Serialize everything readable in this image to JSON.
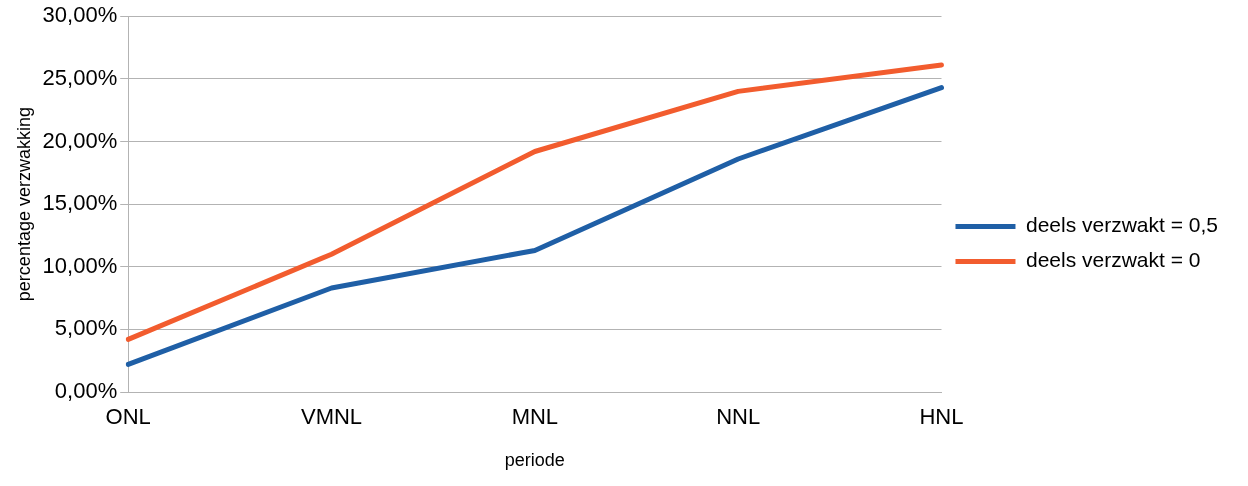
{
  "chart_data": {
    "type": "line",
    "xlabel": "periode",
    "ylabel": "percentage verzwakking",
    "categories": [
      "ONL",
      "VMNL",
      "MNL",
      "NNL",
      "HNL"
    ],
    "series": [
      {
        "name": "deels verzwakt = 0,5",
        "color": "#1f5fa6",
        "values": [
          2.2,
          8.3,
          11.3,
          18.6,
          24.3
        ]
      },
      {
        "name": "deels verzwakt = 0",
        "color": "#f25c2e",
        "values": [
          4.2,
          11.0,
          19.2,
          24.0,
          26.1
        ]
      }
    ],
    "ylim": [
      0,
      30
    ],
    "yticks": [
      {
        "value": 0,
        "label": "0,00%"
      },
      {
        "value": 5,
        "label": "5,00%"
      },
      {
        "value": 10,
        "label": "10,00%"
      },
      {
        "value": 15,
        "label": "15,00%"
      },
      {
        "value": 20,
        "label": "20,00%"
      },
      {
        "value": 25,
        "label": "25,00%"
      },
      {
        "value": 30,
        "label": "30,00%"
      }
    ],
    "grid": "y",
    "legend": "right",
    "marker": "none",
    "line_style": "solid"
  }
}
